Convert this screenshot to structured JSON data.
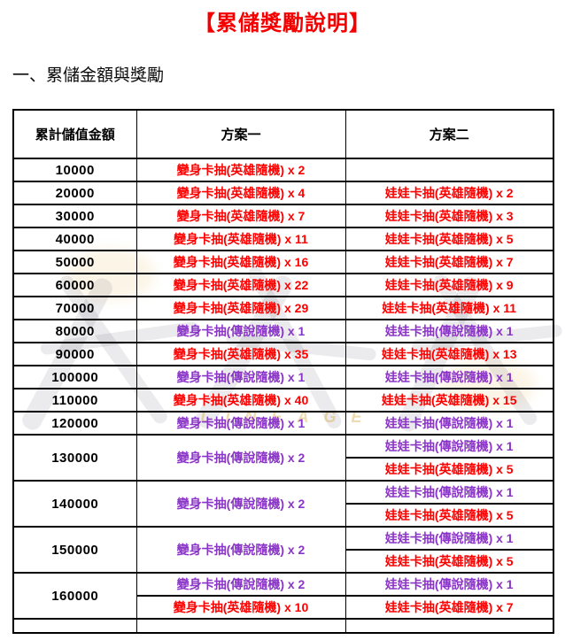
{
  "title": "【累儲獎勵說明】",
  "section_heading": "一、累儲金額與獎勵",
  "colors": {
    "title": "#f50000",
    "hero": "#ff0000",
    "legend": "#8b35c8",
    "watermark_gold": "#d2a032"
  },
  "watermark": {
    "text": "LINEAGE"
  },
  "table": {
    "headers": [
      "累計儲值金額",
      "方案一",
      "方案二"
    ],
    "rows": [
      {
        "amount": "10000",
        "plan1": [
          {
            "text": "變身卡抽(英雄隨機) x 2",
            "type": "hero"
          }
        ],
        "plan2": []
      },
      {
        "amount": "20000",
        "plan1": [
          {
            "text": "變身卡抽(英雄隨機) x 4",
            "type": "hero"
          }
        ],
        "plan2": [
          {
            "text": "娃娃卡抽(英雄隨機) x 2",
            "type": "hero"
          }
        ]
      },
      {
        "amount": "30000",
        "plan1": [
          {
            "text": "變身卡抽(英雄隨機) x 7",
            "type": "hero"
          }
        ],
        "plan2": [
          {
            "text": "娃娃卡抽(英雄隨機) x 3",
            "type": "hero"
          }
        ]
      },
      {
        "amount": "40000",
        "plan1": [
          {
            "text": "變身卡抽(英雄隨機) x 11",
            "type": "hero"
          }
        ],
        "plan2": [
          {
            "text": "娃娃卡抽(英雄隨機) x 5",
            "type": "hero"
          }
        ]
      },
      {
        "amount": "50000",
        "plan1": [
          {
            "text": "變身卡抽(英雄隨機) x 16",
            "type": "hero"
          }
        ],
        "plan2": [
          {
            "text": "娃娃卡抽(英雄隨機) x 7",
            "type": "hero"
          }
        ]
      },
      {
        "amount": "60000",
        "plan1": [
          {
            "text": "變身卡抽(英雄隨機) x 22",
            "type": "hero"
          }
        ],
        "plan2": [
          {
            "text": "娃娃卡抽(英雄隨機) x 9",
            "type": "hero"
          }
        ]
      },
      {
        "amount": "70000",
        "plan1": [
          {
            "text": "變身卡抽(英雄隨機) x 29",
            "type": "hero"
          }
        ],
        "plan2": [
          {
            "text": "娃娃卡抽(英雄隨機) x 11",
            "type": "hero"
          }
        ]
      },
      {
        "amount": "80000",
        "plan1": [
          {
            "text": "變身卡抽(傳說隨機) x 1",
            "type": "legend"
          }
        ],
        "plan2": [
          {
            "text": "娃娃卡抽(傳說隨機) x 1",
            "type": "legend"
          }
        ]
      },
      {
        "amount": "90000",
        "plan1": [
          {
            "text": "變身卡抽(英雄隨機) x 35",
            "type": "hero"
          }
        ],
        "plan2": [
          {
            "text": "娃娃卡抽(英雄隨機) x 13",
            "type": "hero"
          }
        ]
      },
      {
        "amount": "100000",
        "plan1": [
          {
            "text": "變身卡抽(傳說隨機) x 1",
            "type": "legend"
          }
        ],
        "plan2": [
          {
            "text": "娃娃卡抽(傳說隨機) x 1",
            "type": "legend"
          }
        ]
      },
      {
        "amount": "110000",
        "plan1": [
          {
            "text": "變身卡抽(英雄隨機) x 40",
            "type": "hero"
          }
        ],
        "plan2": [
          {
            "text": "娃娃卡抽(英雄隨機) x 15",
            "type": "hero"
          }
        ]
      },
      {
        "amount": "120000",
        "plan1": [
          {
            "text": "變身卡抽(傳說隨機) x 1",
            "type": "legend"
          }
        ],
        "plan2": [
          {
            "text": "娃娃卡抽(傳說隨機) x 1",
            "type": "legend"
          }
        ]
      },
      {
        "amount": "130000",
        "plan1": [
          {
            "text": "變身卡抽(傳說隨機) x 2",
            "type": "legend"
          }
        ],
        "plan2": [
          {
            "text": "娃娃卡抽(傳說隨機) x 1",
            "type": "legend"
          },
          {
            "text": "娃娃卡抽(英雄隨機) x 5",
            "type": "hero"
          }
        ]
      },
      {
        "amount": "140000",
        "plan1": [
          {
            "text": "變身卡抽(傳說隨機) x 2",
            "type": "legend"
          }
        ],
        "plan2": [
          {
            "text": "娃娃卡抽(傳說隨機) x 1",
            "type": "legend"
          },
          {
            "text": "娃娃卡抽(英雄隨機) x 5",
            "type": "hero"
          }
        ]
      },
      {
        "amount": "150000",
        "plan1": [
          {
            "text": "變身卡抽(傳說隨機) x 2",
            "type": "legend"
          }
        ],
        "plan2": [
          {
            "text": "娃娃卡抽(傳說隨機) x 1",
            "type": "legend"
          },
          {
            "text": "娃娃卡抽(英雄隨機) x 5",
            "type": "hero"
          }
        ]
      },
      {
        "amount": "160000",
        "plan1": [
          {
            "text": "變身卡抽(傳說隨機) x 2",
            "type": "legend"
          },
          {
            "text": "變身卡抽(英雄隨機) x 10",
            "type": "hero"
          }
        ],
        "plan2": [
          {
            "text": "娃娃卡抽(傳說隨機) x 1",
            "type": "legend"
          },
          {
            "text": "娃娃卡抽(英雄隨機) x 7",
            "type": "hero"
          }
        ]
      }
    ]
  }
}
